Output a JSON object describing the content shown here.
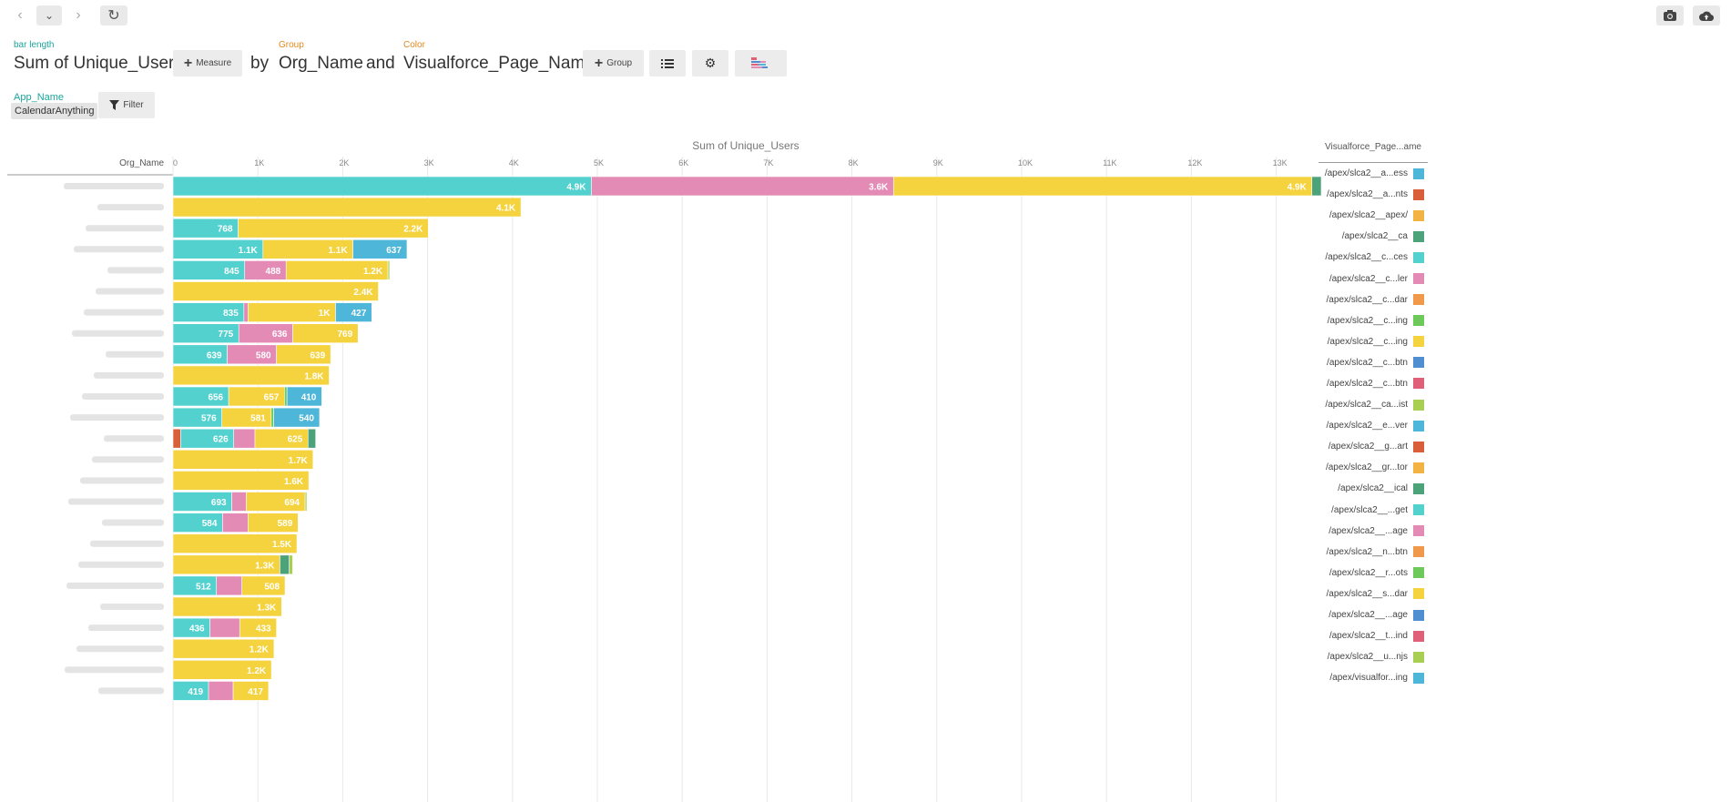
{
  "toolbar": {
    "back_icon": "chevron-left-icon",
    "history_icon": "chevron-down-icon",
    "forward_icon": "chevron-right-icon",
    "refresh_icon": "refresh-icon",
    "snapshot_icon": "camera-icon",
    "upload_icon": "upload-cloud-icon"
  },
  "query": {
    "bar_length_label": "bar length",
    "measure": "Sum of Unique_Users",
    "measure_button": "Measure",
    "by": "by",
    "group_label": "Group",
    "group": "Org_Name",
    "and": "and",
    "color_label": "Color",
    "color": "Visualforce_Page_Name",
    "group_button": "Group"
  },
  "filter": {
    "label": "App_Name",
    "value": "CalendarAnything",
    "button": "Filter"
  },
  "chart_data": {
    "type": "bar",
    "orientation": "horizontal",
    "stacked": true,
    "title": "Sum of Unique_Users",
    "ylabel": "Org_Name",
    "xlim": [
      0,
      13500
    ],
    "x_ticks": [
      0,
      1000,
      2000,
      3000,
      4000,
      5000,
      6000,
      7000,
      8000,
      9000,
      10000,
      11000,
      12000,
      13000
    ],
    "x_tick_labels": [
      "0",
      "1K",
      "2K",
      "3K",
      "4K",
      "5K",
      "6K",
      "7K",
      "8K",
      "9K",
      "10K",
      "11K",
      "12K",
      "13K"
    ],
    "grid": true,
    "legend_title": "Visualforce_Page...ame",
    "legend_position": "right",
    "legend": [
      {
        "label": "/apex/slca2__a...ess",
        "color": "#4db6d9"
      },
      {
        "label": "/apex/slca2__a...nts",
        "color": "#d95f3b"
      },
      {
        "label": "/apex/slca2__apex/",
        "color": "#f2b342"
      },
      {
        "label": "/apex/slca2__ca",
        "color": "#4ca37a"
      },
      {
        "label": "/apex/slca2__c...ces",
        "color": "#52d1cf"
      },
      {
        "label": "/apex/slca2__c...ler",
        "color": "#e38ab5"
      },
      {
        "label": "/apex/slca2__c...dar",
        "color": "#f0994a"
      },
      {
        "label": "/apex/slca2__c...ing",
        "color": "#6cc95a"
      },
      {
        "label": "/apex/slca2__c...ing",
        "color": "#f5d33f"
      },
      {
        "label": "/apex/slca2__c...btn",
        "color": "#4f8fd1"
      },
      {
        "label": "/apex/slca2__c...btn",
        "color": "#e0607a"
      },
      {
        "label": "/apex/slca2__ca...ist",
        "color": "#a8cf52"
      },
      {
        "label": "/apex/slca2__e...ver",
        "color": "#4db6d9"
      },
      {
        "label": "/apex/slca2__g...art",
        "color": "#d95f3b"
      },
      {
        "label": "/apex/slca2__gr...tor",
        "color": "#f2b342"
      },
      {
        "label": "/apex/slca2__ical",
        "color": "#4ca37a"
      },
      {
        "label": "/apex/slca2__...get",
        "color": "#52d1cf"
      },
      {
        "label": "/apex/slca2__...age",
        "color": "#e38ab5"
      },
      {
        "label": "/apex/slca2__n...btn",
        "color": "#f0994a"
      },
      {
        "label": "/apex/slca2__r...ots",
        "color": "#6cc95a"
      },
      {
        "label": "/apex/slca2__s...dar",
        "color": "#f5d33f"
      },
      {
        "label": "/apex/slca2__...age",
        "color": "#4f8fd1"
      },
      {
        "label": "/apex/slca2__t...ind",
        "color": "#e0607a"
      },
      {
        "label": "/apex/slca2__u...njs",
        "color": "#a8cf52"
      },
      {
        "label": "/apex/visualfor...ing",
        "color": "#4db6d9"
      }
    ],
    "rows": [
      {
        "segments": [
          {
            "value": 4930,
            "color": "#52d1cf",
            "label": "4.9K"
          },
          {
            "value": 3560,
            "color": "#e38ab5",
            "label": "3.6K"
          },
          {
            "value": 4930,
            "color": "#f5d33f",
            "label": "4.9K"
          },
          {
            "value": 110,
            "color": "#4ca37a"
          }
        ]
      },
      {
        "segments": [
          {
            "value": 4100,
            "color": "#f5d33f",
            "label": "4.1K"
          }
        ]
      },
      {
        "segments": [
          {
            "value": 768,
            "color": "#52d1cf",
            "label": "768"
          },
          {
            "value": 2240,
            "color": "#f5d33f",
            "label": "2.2K"
          }
        ]
      },
      {
        "segments": [
          {
            "value": 1060,
            "color": "#52d1cf",
            "label": "1.1K"
          },
          {
            "value": 1060,
            "color": "#f5d33f",
            "label": "1.1K"
          },
          {
            "value": 637,
            "color": "#4db6d9",
            "label": "637"
          }
        ]
      },
      {
        "segments": [
          {
            "value": 845,
            "color": "#52d1cf",
            "label": "845"
          },
          {
            "value": 488,
            "color": "#e38ab5",
            "label": "488"
          },
          {
            "value": 1200,
            "color": "#f5d33f",
            "label": "1.2K"
          },
          {
            "value": 20,
            "color": "#a8cf52"
          }
        ]
      },
      {
        "segments": [
          {
            "value": 2420,
            "color": "#f5d33f",
            "label": "2.4K"
          }
        ]
      },
      {
        "segments": [
          {
            "value": 835,
            "color": "#52d1cf",
            "label": "835"
          },
          {
            "value": 50,
            "color": "#e38ab5"
          },
          {
            "value": 1030,
            "color": "#f5d33f",
            "label": "1K"
          },
          {
            "value": 427,
            "color": "#4db6d9",
            "label": "427"
          }
        ]
      },
      {
        "segments": [
          {
            "value": 775,
            "color": "#52d1cf",
            "label": "775"
          },
          {
            "value": 636,
            "color": "#e38ab5",
            "label": "636"
          },
          {
            "value": 769,
            "color": "#f5d33f",
            "label": "769"
          }
        ]
      },
      {
        "segments": [
          {
            "value": 639,
            "color": "#52d1cf",
            "label": "639"
          },
          {
            "value": 580,
            "color": "#e38ab5",
            "label": "580"
          },
          {
            "value": 639,
            "color": "#f5d33f",
            "label": "639"
          }
        ]
      },
      {
        "segments": [
          {
            "value": 1840,
            "color": "#f5d33f",
            "label": "1.8K"
          }
        ]
      },
      {
        "segments": [
          {
            "value": 656,
            "color": "#52d1cf",
            "label": "656"
          },
          {
            "value": 657,
            "color": "#f5d33f",
            "label": "657"
          },
          {
            "value": 30,
            "color": "#6cc95a"
          },
          {
            "value": 410,
            "color": "#4db6d9",
            "label": "410"
          }
        ]
      },
      {
        "segments": [
          {
            "value": 576,
            "color": "#52d1cf",
            "label": "576"
          },
          {
            "value": 581,
            "color": "#f5d33f",
            "label": "581"
          },
          {
            "value": 30,
            "color": "#6cc95a"
          },
          {
            "value": 540,
            "color": "#4db6d9",
            "label": "540"
          }
        ]
      },
      {
        "segments": [
          {
            "value": 90,
            "color": "#d95f3b"
          },
          {
            "value": 626,
            "color": "#52d1cf",
            "label": "626"
          },
          {
            "value": 250,
            "color": "#e38ab5"
          },
          {
            "value": 625,
            "color": "#f5d33f",
            "label": "625"
          },
          {
            "value": 90,
            "color": "#4ca37a"
          }
        ]
      },
      {
        "segments": [
          {
            "value": 1650,
            "color": "#f5d33f",
            "label": "1.7K"
          }
        ]
      },
      {
        "segments": [
          {
            "value": 1600,
            "color": "#f5d33f",
            "label": "1.6K"
          }
        ]
      },
      {
        "segments": [
          {
            "value": 693,
            "color": "#52d1cf",
            "label": "693"
          },
          {
            "value": 170,
            "color": "#e38ab5"
          },
          {
            "value": 694,
            "color": "#f5d33f",
            "label": "694"
          },
          {
            "value": 20,
            "color": "#a8cf52"
          }
        ]
      },
      {
        "segments": [
          {
            "value": 584,
            "color": "#52d1cf",
            "label": "584"
          },
          {
            "value": 300,
            "color": "#e38ab5"
          },
          {
            "value": 589,
            "color": "#f5d33f",
            "label": "589"
          }
        ]
      },
      {
        "segments": [
          {
            "value": 1460,
            "color": "#f5d33f",
            "label": "1.5K"
          }
        ]
      },
      {
        "segments": [
          {
            "value": 1260,
            "color": "#f5d33f",
            "label": "1.3K"
          },
          {
            "value": 110,
            "color": "#4ca37a"
          },
          {
            "value": 40,
            "color": "#a8cf52"
          }
        ]
      },
      {
        "segments": [
          {
            "value": 512,
            "color": "#52d1cf",
            "label": "512"
          },
          {
            "value": 300,
            "color": "#e38ab5"
          },
          {
            "value": 508,
            "color": "#f5d33f",
            "label": "508"
          }
        ]
      },
      {
        "segments": [
          {
            "value": 1280,
            "color": "#f5d33f",
            "label": "1.3K"
          }
        ]
      },
      {
        "segments": [
          {
            "value": 436,
            "color": "#52d1cf",
            "label": "436"
          },
          {
            "value": 350,
            "color": "#e38ab5"
          },
          {
            "value": 433,
            "color": "#f5d33f",
            "label": "433"
          }
        ]
      },
      {
        "segments": [
          {
            "value": 1190,
            "color": "#f5d33f",
            "label": "1.2K"
          }
        ]
      },
      {
        "segments": [
          {
            "value": 1160,
            "color": "#f5d33f",
            "label": "1.2K"
          }
        ]
      },
      {
        "segments": [
          {
            "value": 419,
            "color": "#52d1cf",
            "label": "419"
          },
          {
            "value": 290,
            "color": "#e38ab5"
          },
          {
            "value": 417,
            "color": "#f5d33f",
            "label": "417"
          }
        ]
      }
    ]
  }
}
